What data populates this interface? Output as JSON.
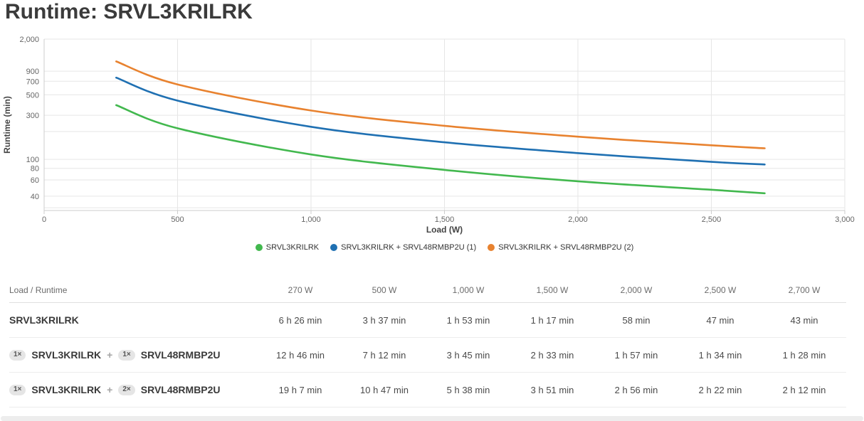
{
  "page": {
    "title": "Runtime: SRVL3KRILRK"
  },
  "chart_data": {
    "type": "line",
    "title": "Runtime: SRVL3KRILRK",
    "xlabel": "Load (W)",
    "ylabel": "Runtime (min)",
    "yscale": "log",
    "grid": true,
    "legend_position": "bottom",
    "xlim": [
      0,
      3000
    ],
    "ylim": [
      28,
      2000
    ],
    "x_ticks": [
      0,
      500,
      1000,
      1500,
      2000,
      2500,
      3000
    ],
    "x_tick_labels": [
      "0",
      "500",
      "1,000",
      "1,500",
      "2,000",
      "2,500",
      "3,000"
    ],
    "y_gridlines": [
      {
        "v": 2000,
        "label": "2,000"
      },
      {
        "v": 900,
        "label": "900"
      },
      {
        "v": 700,
        "label": "700"
      },
      {
        "v": 500,
        "label": "500"
      },
      {
        "v": 300,
        "label": "300"
      },
      {
        "v": 200,
        "label": ""
      },
      {
        "v": 100,
        "label": "100"
      },
      {
        "v": 80,
        "label": "80"
      },
      {
        "v": 60,
        "label": "60"
      },
      {
        "v": 40,
        "label": "40"
      },
      {
        "v": 30,
        "label": ""
      }
    ],
    "x": [
      270,
      500,
      1000,
      1500,
      2000,
      2500,
      2700
    ],
    "series": [
      {
        "name": "SRVL3KRILRK",
        "color": "#42b84e",
        "values_min": [
          386,
          217,
          113,
          77,
          58,
          47,
          43
        ]
      },
      {
        "name": "SRVL3KRILRK + SRVL48RMBP2U (1)",
        "color": "#1f70b2",
        "values_min": [
          766,
          432,
          225,
          153,
          117,
          94,
          88
        ]
      },
      {
        "name": "SRVL3KRILRK + SRVL48RMBP2U (2)",
        "color": "#e8822f",
        "values_min": [
          1147,
          647,
          338,
          231,
          176,
          142,
          132
        ]
      }
    ]
  },
  "table": {
    "header": [
      "Load / Runtime",
      "270 W",
      "500 W",
      "1,000 W",
      "1,500 W",
      "2,000 W",
      "2,500 W",
      "2,700 W"
    ],
    "rows": [
      {
        "label": [
          {
            "type": "name",
            "text": "SRVL3KRILRK"
          }
        ],
        "values": [
          "6 h 26 min",
          "3 h 37 min",
          "1 h 53 min",
          "1 h 17 min",
          "58 min",
          "47 min",
          "43 min"
        ]
      },
      {
        "label": [
          {
            "type": "badge",
            "text": "1×"
          },
          {
            "type": "name",
            "text": "SRVL3KRILRK"
          },
          {
            "type": "plus",
            "text": "+"
          },
          {
            "type": "badge",
            "text": "1×"
          },
          {
            "type": "name",
            "text": "SRVL48RMBP2U"
          }
        ],
        "values": [
          "12 h 46 min",
          "7 h 12 min",
          "3 h 45 min",
          "2 h 33 min",
          "1 h 57 min",
          "1 h 34 min",
          "1 h 28 min"
        ]
      },
      {
        "label": [
          {
            "type": "badge",
            "text": "1×"
          },
          {
            "type": "name",
            "text": "SRVL3KRILRK"
          },
          {
            "type": "plus",
            "text": "+"
          },
          {
            "type": "badge",
            "text": "2×"
          },
          {
            "type": "name",
            "text": "SRVL48RMBP2U"
          }
        ],
        "values": [
          "19 h 7 min",
          "10 h 47 min",
          "5 h 38 min",
          "3 h 51 min",
          "2 h 56 min",
          "2 h 22 min",
          "2 h 12 min"
        ]
      }
    ]
  }
}
